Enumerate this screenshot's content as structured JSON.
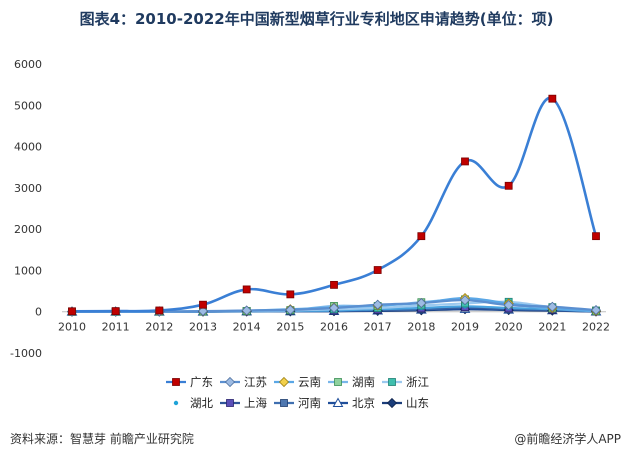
{
  "title": "图表4：2010-2022年中国新型烟草行业专利地区申请趋势(单位：项)",
  "source": "资料来源：智慧芽 前瞻产业研究院",
  "brand": "@前瞻经济学人APP",
  "chart_data": {
    "type": "line",
    "x": [
      "2010",
      "2011",
      "2012",
      "2013",
      "2014",
      "2015",
      "2016",
      "2017",
      "2018",
      "2019",
      "2020",
      "2021",
      "2022"
    ],
    "ylim": [
      -1000,
      6000
    ],
    "yticks": [
      -1000,
      0,
      1000,
      2000,
      3000,
      4000,
      5000,
      6000
    ],
    "grid": false,
    "legend_position": "bottom",
    "series": [
      {
        "name": "广东",
        "color": "#3a7fd5",
        "marker": "square-red",
        "values": [
          10,
          15,
          30,
          170,
          540,
          420,
          650,
          1010,
          1830,
          3640,
          3050,
          5160,
          1830
        ]
      },
      {
        "name": "江苏",
        "color": "#5b8fd0",
        "marker": "diamond",
        "values": [
          2,
          3,
          5,
          15,
          30,
          45,
          90,
          170,
          210,
          280,
          160,
          120,
          40
        ]
      },
      {
        "name": "云南",
        "color": "#5aa7e6",
        "marker": "diamond-yellow",
        "values": [
          1,
          2,
          4,
          10,
          25,
          60,
          100,
          150,
          210,
          330,
          200,
          90,
          20
        ]
      },
      {
        "name": "湖南",
        "color": "#79b6ea",
        "marker": "square-green",
        "values": [
          1,
          1,
          3,
          8,
          20,
          40,
          140,
          140,
          230,
          300,
          180,
          80,
          15
        ]
      },
      {
        "name": "浙江",
        "color": "#9cc9ef",
        "marker": "square-teal",
        "values": [
          1,
          2,
          3,
          6,
          15,
          30,
          60,
          90,
          150,
          200,
          240,
          110,
          30
        ]
      },
      {
        "name": "湖北",
        "color": "#4aa3df",
        "marker": "dot",
        "values": [
          0,
          1,
          2,
          4,
          10,
          20,
          30,
          60,
          90,
          130,
          90,
          60,
          10
        ]
      },
      {
        "name": "上海",
        "color": "#2f5597",
        "marker": "square-purple",
        "values": [
          1,
          1,
          2,
          5,
          12,
          18,
          30,
          50,
          80,
          110,
          80,
          50,
          10
        ]
      },
      {
        "name": "河南",
        "color": "#3f6fb0",
        "marker": "square-blue",
        "values": [
          0,
          1,
          2,
          4,
          8,
          12,
          20,
          40,
          60,
          100,
          70,
          40,
          8
        ]
      },
      {
        "name": "北京",
        "color": "#1f4e9a",
        "marker": "triangle",
        "values": [
          1,
          1,
          2,
          3,
          8,
          12,
          18,
          30,
          50,
          70,
          50,
          35,
          5
        ]
      },
      {
        "name": "山东",
        "color": "#1b3d7a",
        "marker": "diamond-dark",
        "values": [
          0,
          0,
          1,
          2,
          5,
          8,
          12,
          20,
          35,
          60,
          40,
          25,
          3
        ]
      }
    ]
  }
}
